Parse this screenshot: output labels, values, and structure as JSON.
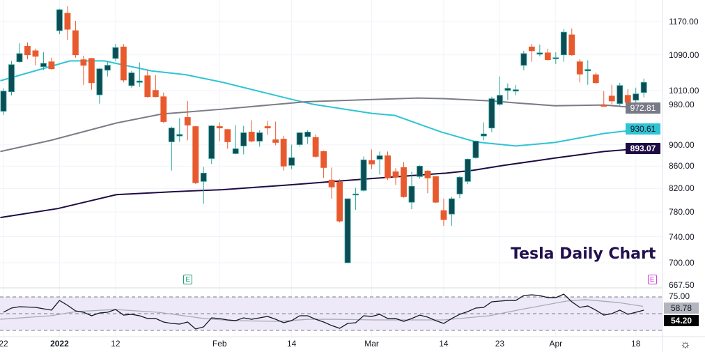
{
  "title": "Tesla Daily Chart",
  "colors": {
    "up_fill": "#0d4b55",
    "up_border": "#26a69a",
    "down": "#e85a2e",
    "ma_fast": "#2ec4d4",
    "ma_mid": "#7b7d85",
    "ma_slow": "#1e0b44",
    "rsi": "#131722",
    "rsi_ma": "#a9abb3",
    "rsi_band": "#ede9f8"
  },
  "chart_data": {
    "type": "candlestick",
    "title": "Tesla Daily Chart",
    "scale": "log",
    "ylim": [
      667.5,
      1210
    ],
    "y_ticks": [
      "1170.00",
      "1090.00",
      "1010.00",
      "980.00",
      "900.00",
      "860.00",
      "820.00",
      "780.00",
      "740.00",
      "700.00",
      "667.50"
    ],
    "x_ticks": [
      {
        "label": "22",
        "index": 0,
        "bold": false
      },
      {
        "label": "2022",
        "index": 7,
        "bold": true
      },
      {
        "label": "12",
        "index": 14,
        "bold": false
      },
      {
        "label": "Feb",
        "index": 27,
        "bold": false
      },
      {
        "label": "14",
        "index": 36,
        "bold": false
      },
      {
        "label": "Mar",
        "index": 46,
        "bold": false
      },
      {
        "label": "14",
        "index": 55,
        "bold": false
      },
      {
        "label": "23",
        "index": 62,
        "bold": false
      },
      {
        "label": "Apr",
        "index": 69,
        "bold": false
      },
      {
        "label": "18",
        "index": 79,
        "bold": false
      }
    ],
    "ohlc_fields": [
      "open",
      "high",
      "low",
      "close"
    ],
    "candles": [
      [
        966.6,
        1015,
        959,
        1009
      ],
      [
        1007.6,
        1076,
        1000,
        1067.5
      ],
      [
        1074,
        1117,
        1072,
        1093
      ],
      [
        1110,
        1119,
        1080,
        1090
      ],
      [
        1099.5,
        1104.5,
        1066,
        1086.6
      ],
      [
        1063,
        1096,
        1055,
        1070.6
      ],
      [
        1074,
        1083.4,
        1056.5,
        1058
      ],
      [
        1147.7,
        1202,
        1139,
        1200
      ],
      [
        1191,
        1209,
        1125.7,
        1151
      ],
      [
        1147.7,
        1172,
        1083.4,
        1090
      ],
      [
        1078.8,
        1088,
        1022.6,
        1066
      ],
      [
        1081.7,
        1083,
        1012,
        1027
      ],
      [
        1001,
        1060,
        982.5,
        1058
      ],
      [
        1055,
        1076,
        1041,
        1066
      ],
      [
        1081.7,
        1115.5,
        1076,
        1107
      ],
      [
        1108.6,
        1115.5,
        1028,
        1033
      ],
      [
        1021,
        1053.4,
        1016.5,
        1049
      ],
      [
        1028,
        1072.7,
        1018,
        1031
      ],
      [
        1042.5,
        1055,
        995,
        997
      ],
      [
        1010.6,
        1044,
        995.5,
        997
      ],
      [
        997,
        1006,
        942.7,
        945.5
      ],
      [
        905.7,
        935.6,
        852,
        932.7
      ],
      [
        917,
        952.6,
        905.7,
        920
      ],
      [
        954,
        988,
        908.5,
        938.5
      ],
      [
        935.6,
        937,
        828,
        830
      ],
      [
        832.4,
        858.7,
        793.9,
        847.3
      ],
      [
        874,
        938.5,
        864,
        937
      ],
      [
        935.7,
        944,
        907,
        932.7
      ],
      [
        929.8,
        930.5,
        892.4,
        905.7
      ],
      [
        883.2,
        938.5,
        881.9,
        892.4
      ],
      [
        897.7,
        937,
        881.9,
        923.3
      ],
      [
        924.7,
        948.3,
        904.4,
        907
      ],
      [
        907,
        928.4,
        896.4,
        923.3
      ],
      [
        935.7,
        946.9,
        919.2,
        932.7
      ],
      [
        909.7,
        945.5,
        899,
        904.4
      ],
      [
        911,
        917,
        852,
        860
      ],
      [
        861.4,
        900.3,
        854.6,
        875.5
      ],
      [
        900.3,
        924.5,
        896.4,
        923.3
      ],
      [
        915.6,
        928.4,
        901.6,
        924.7
      ],
      [
        914.2,
        920,
        875.5,
        877.9
      ],
      [
        887.2,
        889,
        838.6,
        857.4
      ],
      [
        834.9,
        857.4,
        802.2,
        822.6
      ],
      [
        831.2,
        836.1,
        762.8,
        765
      ],
      [
        700,
        803,
        700,
        802.2
      ],
      [
        809.3,
        821.4,
        783.5,
        810.5
      ],
      [
        816.6,
        877.9,
        815,
        871.5
      ],
      [
        870.2,
        891,
        854.6,
        863.8
      ],
      [
        872.8,
        887.2,
        844.8,
        879.2
      ],
      [
        879.2,
        887.2,
        834.9,
        838.6
      ],
      [
        849.8,
        856.1,
        826.3,
        839.8
      ],
      [
        857.4,
        867.6,
        804,
        805.7
      ],
      [
        796.3,
        849.8,
        784.6,
        823.9
      ],
      [
        841.1,
        861.4,
        837.3,
        860
      ],
      [
        851.1,
        852.4,
        811.7,
        838.6
      ],
      [
        841.1,
        842,
        795,
        796.3
      ],
      [
        782.3,
        802.2,
        757.2,
        767.3
      ],
      [
        776.5,
        805.7,
        757.2,
        802.2
      ],
      [
        810.5,
        842.3,
        803.4,
        839.8
      ],
      [
        832.4,
        874.1,
        827.5,
        872.8
      ],
      [
        875.5,
        908,
        874,
        907
      ],
      [
        917,
        944,
        908.5,
        921
      ],
      [
        932.7,
        997,
        924.7,
        992.8
      ],
      [
        981,
        1041,
        978,
        1000
      ],
      [
        1010.6,
        1025.6,
        989.7,
        1015
      ],
      [
        1009,
        1022.6,
        1000,
        1012
      ],
      [
        1066,
        1099.5,
        1055,
        1093
      ],
      [
        1108.6,
        1115.5,
        1074,
        1099.5
      ],
      [
        1091.6,
        1114,
        1086.6,
        1094.6
      ],
      [
        1094.6,
        1104.5,
        1077,
        1078.8
      ],
      [
        1081.7,
        1096,
        1069,
        1083.4
      ],
      [
        1090,
        1151,
        1074,
        1144
      ],
      [
        1137.5,
        1153,
        1088,
        1090
      ],
      [
        1074,
        1080,
        1028,
        1046.3
      ],
      [
        1053.4,
        1077.4,
        1022.6,
        1056.5
      ],
      [
        1044.8,
        1049.4,
        1025.6,
        1027
      ],
      [
        979.6,
        1009,
        976,
        976.8
      ],
      [
        998.5,
        1022.6,
        981,
        988
      ],
      [
        982.5,
        1027,
        975.3,
        1021
      ],
      [
        1000,
        1013.5,
        984,
        985.4
      ],
      [
        989.7,
        1016.5,
        975.3,
        1003
      ],
      [
        1006,
        1036.4,
        995.5,
        1028
      ]
    ],
    "moving_averages": [
      {
        "name": "MA fast",
        "color_key": "ma_fast",
        "last": "930.61",
        "points": [
          [
            -0.4,
            1031.5
          ],
          [
            8.3,
            1076
          ],
          [
            12.6,
            1076
          ],
          [
            18.5,
            1053.4
          ],
          [
            22.8,
            1044.8
          ],
          [
            27.4,
            1028
          ],
          [
            36.1,
            991
          ],
          [
            38.7,
            981
          ],
          [
            46,
            962.3
          ],
          [
            48.9,
            958
          ],
          [
            54.7,
            924.7
          ],
          [
            58.7,
            907
          ],
          [
            59.6,
            904.4
          ],
          [
            64,
            897.7
          ],
          [
            68.9,
            904.4
          ],
          [
            75,
            921.9
          ],
          [
            79.9,
            930.61
          ]
        ]
      },
      {
        "name": "MA mid",
        "color_key": "ma_mid",
        "last": "972.81",
        "points": [
          [
            -0.4,
            887.2
          ],
          [
            5.9,
            908.5
          ],
          [
            14.1,
            942.7
          ],
          [
            19.8,
            961
          ],
          [
            27.4,
            971
          ],
          [
            37.9,
            986.5
          ],
          [
            51.8,
            994.2
          ],
          [
            55.3,
            992.8
          ],
          [
            61.1,
            988
          ],
          [
            64,
            984
          ],
          [
            68.9,
            978
          ],
          [
            75,
            979.6
          ],
          [
            79.9,
            972.81
          ]
        ]
      },
      {
        "name": "MA slow",
        "color_key": "ma_slow",
        "last": "893.07",
        "points": [
          [
            -0.4,
            770.7
          ],
          [
            6.8,
            785.7
          ],
          [
            14.1,
            809.3
          ],
          [
            22.8,
            815.4
          ],
          [
            27.4,
            817.9
          ],
          [
            35.9,
            826.5
          ],
          [
            46,
            837.5
          ],
          [
            55.3,
            847.3
          ],
          [
            58.7,
            852.4
          ],
          [
            62.5,
            861.4
          ],
          [
            69.2,
            875.5
          ],
          [
            75,
            887.2
          ],
          [
            79.9,
            893.07
          ]
        ]
      }
    ],
    "rsi": {
      "top_label": "75.00",
      "bands": [
        70,
        50,
        30
      ],
      "last": "54.20",
      "ma_last": "58.78",
      "values": [
        51.7,
        56.7,
        58.3,
        57.9,
        57.5,
        55.8,
        54.2,
        65.8,
        60,
        53.3,
        51.7,
        47.5,
        50.8,
        51.7,
        55,
        48.3,
        49.2,
        47.5,
        44.2,
        44.2,
        40,
        38.3,
        37.5,
        40,
        31.7,
        34.2,
        45,
        44.2,
        42.5,
        41.7,
        45,
        43.3,
        45,
        46.7,
        43.3,
        39.2,
        41.7,
        47.5,
        47.5,
        43.3,
        40,
        35.8,
        32.5,
        38.3,
        39.2,
        47.5,
        46.7,
        49.2,
        44.2,
        44.2,
        40.8,
        44.2,
        48.3,
        45.8,
        41.7,
        38.3,
        44.2,
        49.2,
        52.5,
        56.7,
        57.5,
        64.2,
        65,
        65.8,
        65.8,
        71.7,
        72.5,
        71.7,
        69.2,
        69.2,
        73.3,
        64.2,
        57.5,
        59.2,
        54.2,
        48.3,
        50,
        54.2,
        49.2,
        51.7,
        54.2
      ],
      "ma_points": [
        [
          -0.4,
          43.3
        ],
        [
          5.9,
          47.5
        ],
        [
          9.1,
          52.5
        ],
        [
          13.9,
          55
        ],
        [
          19.3,
          51.7
        ],
        [
          25.1,
          44.2
        ],
        [
          28.5,
          41.7
        ],
        [
          34.4,
          40.8
        ],
        [
          38.1,
          43.3
        ],
        [
          41.3,
          43.3
        ],
        [
          46.3,
          42.5
        ],
        [
          55,
          42.5
        ],
        [
          60.7,
          47.5
        ],
        [
          65.1,
          55.8
        ],
        [
          70.3,
          65
        ],
        [
          72.7,
          66.7
        ],
        [
          76.8,
          63.3
        ],
        [
          79.9,
          58.78
        ]
      ]
    },
    "earnings_markers": [
      {
        "label": "E",
        "index": 23,
        "color": "#1e9e72"
      },
      {
        "label": "E",
        "index": 81,
        "color": "#d63ce0"
      }
    ]
  }
}
